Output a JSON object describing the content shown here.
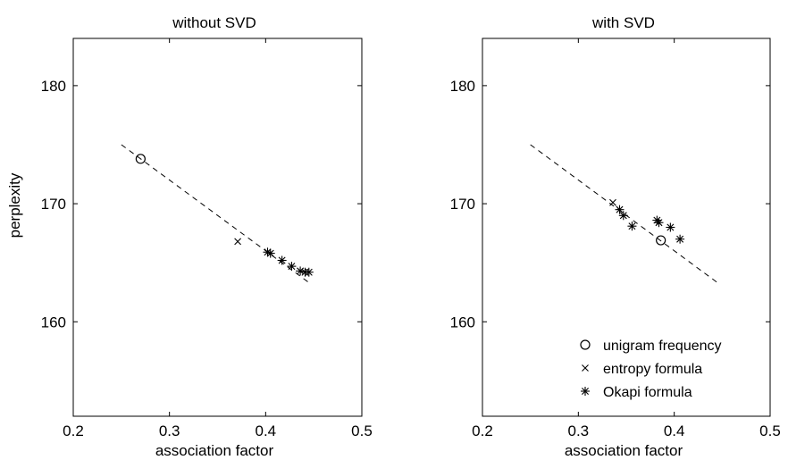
{
  "chart_data": [
    {
      "type": "scatter",
      "title": "without SVD",
      "xlabel": "association factor",
      "ylabel": "perplexity",
      "xlim": [
        0.2,
        0.5
      ],
      "ylim": [
        152,
        184
      ],
      "xticks": [
        0.2,
        0.3,
        0.4,
        0.5
      ],
      "yticks": [
        160,
        170,
        180
      ],
      "xtick_labels": [
        "0.2",
        "0.3",
        "0.4",
        "0.5"
      ],
      "ytick_labels": [
        "160",
        "170",
        "180"
      ],
      "trend_line": {
        "style": "dashed",
        "points": [
          [
            0.25,
            175.0
          ],
          [
            0.447,
            163.2
          ]
        ]
      },
      "series": [
        {
          "name": "unigram frequency",
          "marker": "circle",
          "points": [
            [
              0.27,
              173.8
            ]
          ]
        },
        {
          "name": "entropy formula",
          "marker": "x",
          "points": [
            [
              0.371,
              166.8
            ]
          ]
        },
        {
          "name": "Okapi formula",
          "marker": "asterisk",
          "points": [
            [
              0.402,
              165.9
            ],
            [
              0.405,
              165.8
            ],
            [
              0.417,
              165.2
            ],
            [
              0.427,
              164.7
            ],
            [
              0.436,
              164.3
            ],
            [
              0.441,
              164.2
            ],
            [
              0.445,
              164.2
            ]
          ]
        }
      ],
      "legend": false
    },
    {
      "type": "scatter",
      "title": "with SVD",
      "xlabel": "association factor",
      "ylabel": "",
      "xlim": [
        0.2,
        0.5
      ],
      "ylim": [
        152,
        184
      ],
      "xticks": [
        0.2,
        0.3,
        0.4,
        0.5
      ],
      "yticks": [
        160,
        170,
        180
      ],
      "xtick_labels": [
        "0.2",
        "0.3",
        "0.4",
        "0.5"
      ],
      "ytick_labels": [
        "160",
        "170",
        "180"
      ],
      "trend_line": {
        "style": "dashed",
        "points": [
          [
            0.25,
            175.0
          ],
          [
            0.447,
            163.2
          ]
        ]
      },
      "series": [
        {
          "name": "unigram frequency",
          "marker": "circle",
          "points": [
            [
              0.386,
              166.9
            ]
          ]
        },
        {
          "name": "entropy formula",
          "marker": "x",
          "points": [
            [
              0.336,
              170.1
            ]
          ]
        },
        {
          "name": "Okapi formula",
          "marker": "asterisk",
          "points": [
            [
              0.343,
              169.5
            ],
            [
              0.347,
              169.0
            ],
            [
              0.356,
              168.1
            ],
            [
              0.382,
              168.6
            ],
            [
              0.384,
              168.4
            ],
            [
              0.396,
              168.0
            ],
            [
              0.406,
              167.0
            ]
          ]
        }
      ],
      "legend": true,
      "legend_position": "bottom-right"
    }
  ]
}
